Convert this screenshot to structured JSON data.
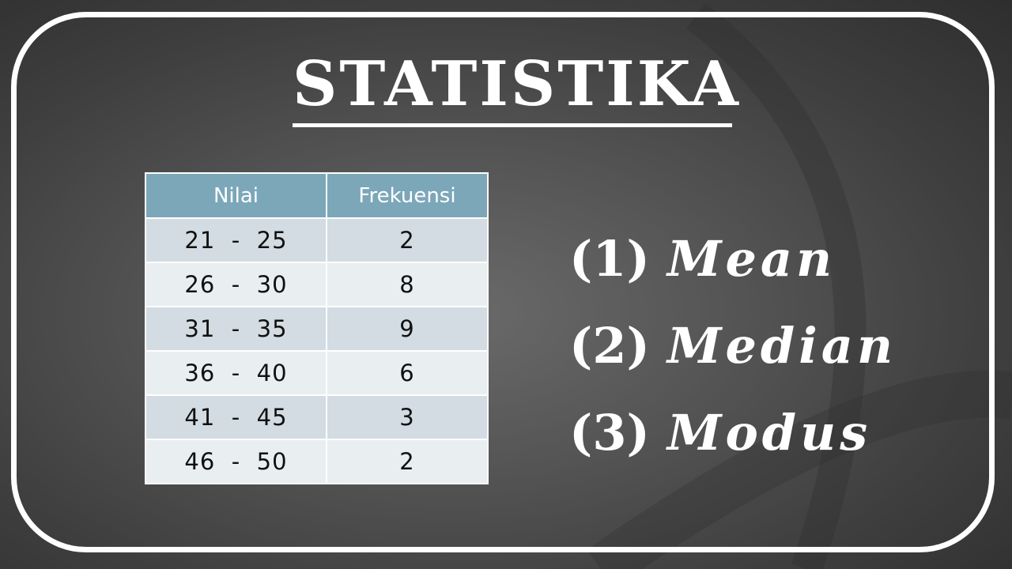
{
  "slide": {
    "title": "STATISTIKA"
  },
  "table": {
    "headers": [
      "Nilai",
      "Frekuensi"
    ],
    "rows": [
      {
        "nilai": "21  -  25",
        "frekuensi": "2"
      },
      {
        "nilai": "26  -  30",
        "frekuensi": "8"
      },
      {
        "nilai": "31  -  35",
        "frekuensi": "9"
      },
      {
        "nilai": "36  -  40",
        "frekuensi": "6"
      },
      {
        "nilai": "41  -  45",
        "frekuensi": "3"
      },
      {
        "nilai": "46  -  50",
        "frekuensi": "2"
      }
    ]
  },
  "measures": [
    {
      "number": "(1)",
      "name": "Mean"
    },
    {
      "number": "(2)",
      "name": "Median"
    },
    {
      "number": "(3)",
      "name": "Modus"
    }
  ],
  "colors": {
    "header_bg": "#7ba7b9",
    "row_odd": "#d2dce2",
    "row_even": "#e9eef1",
    "frame": "#ffffff"
  }
}
